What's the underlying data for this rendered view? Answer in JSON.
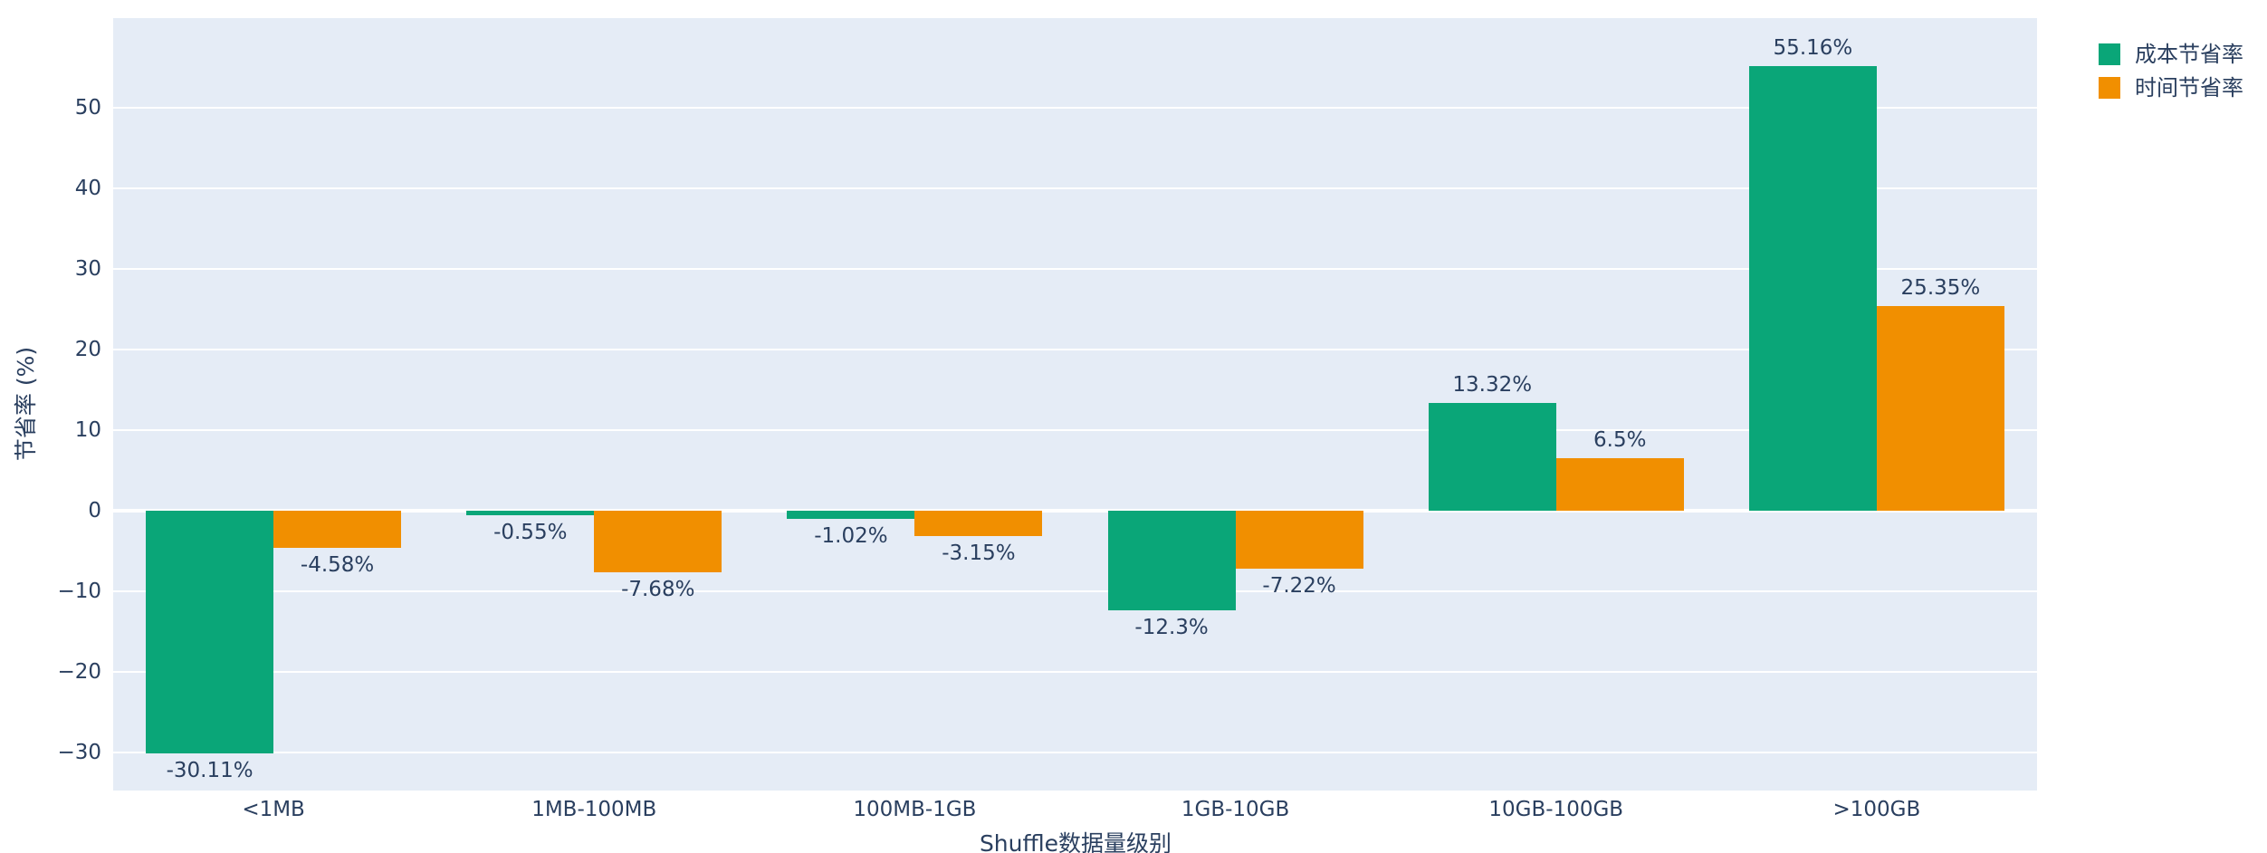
{
  "chart": {
    "page_bg": "#ffffff",
    "plot_bg": "#e5ecf6",
    "grid_color": "#ffffff",
    "text_color": "#2a3f5f"
  },
  "chart_data": {
    "type": "bar",
    "title": "",
    "xlabel": "Shuffle数据量级别",
    "ylabel": "节省率 (%)",
    "categories": [
      "<1MB",
      "1MB-100MB",
      "100MB-1GB",
      "1GB-10GB",
      "10GB-100GB",
      ">100GB"
    ],
    "series": [
      {
        "name": "成本节省率",
        "color": "#0aa678",
        "values": [
          -30.11,
          -0.55,
          -1.02,
          -12.3,
          13.32,
          55.16
        ],
        "labels": [
          "-30.11%",
          "-0.55%",
          "-1.02%",
          "-12.3%",
          "13.32%",
          "55.16%"
        ]
      },
      {
        "name": "时间节省率",
        "color": "#f18f00",
        "values": [
          -4.58,
          -7.68,
          -3.15,
          -7.22,
          6.5,
          25.35
        ],
        "labels": [
          "-4.58%",
          "-7.68%",
          "-3.15%",
          "-7.22%",
          "6.5%",
          "25.35%"
        ]
      }
    ],
    "yticks": [
      50,
      40,
      30,
      20,
      10,
      0,
      -10,
      -20,
      -30
    ],
    "ylim": [
      -34.7,
      61.1
    ],
    "grid": true,
    "legend_position": "top-right",
    "bar_label_position": "outside"
  }
}
